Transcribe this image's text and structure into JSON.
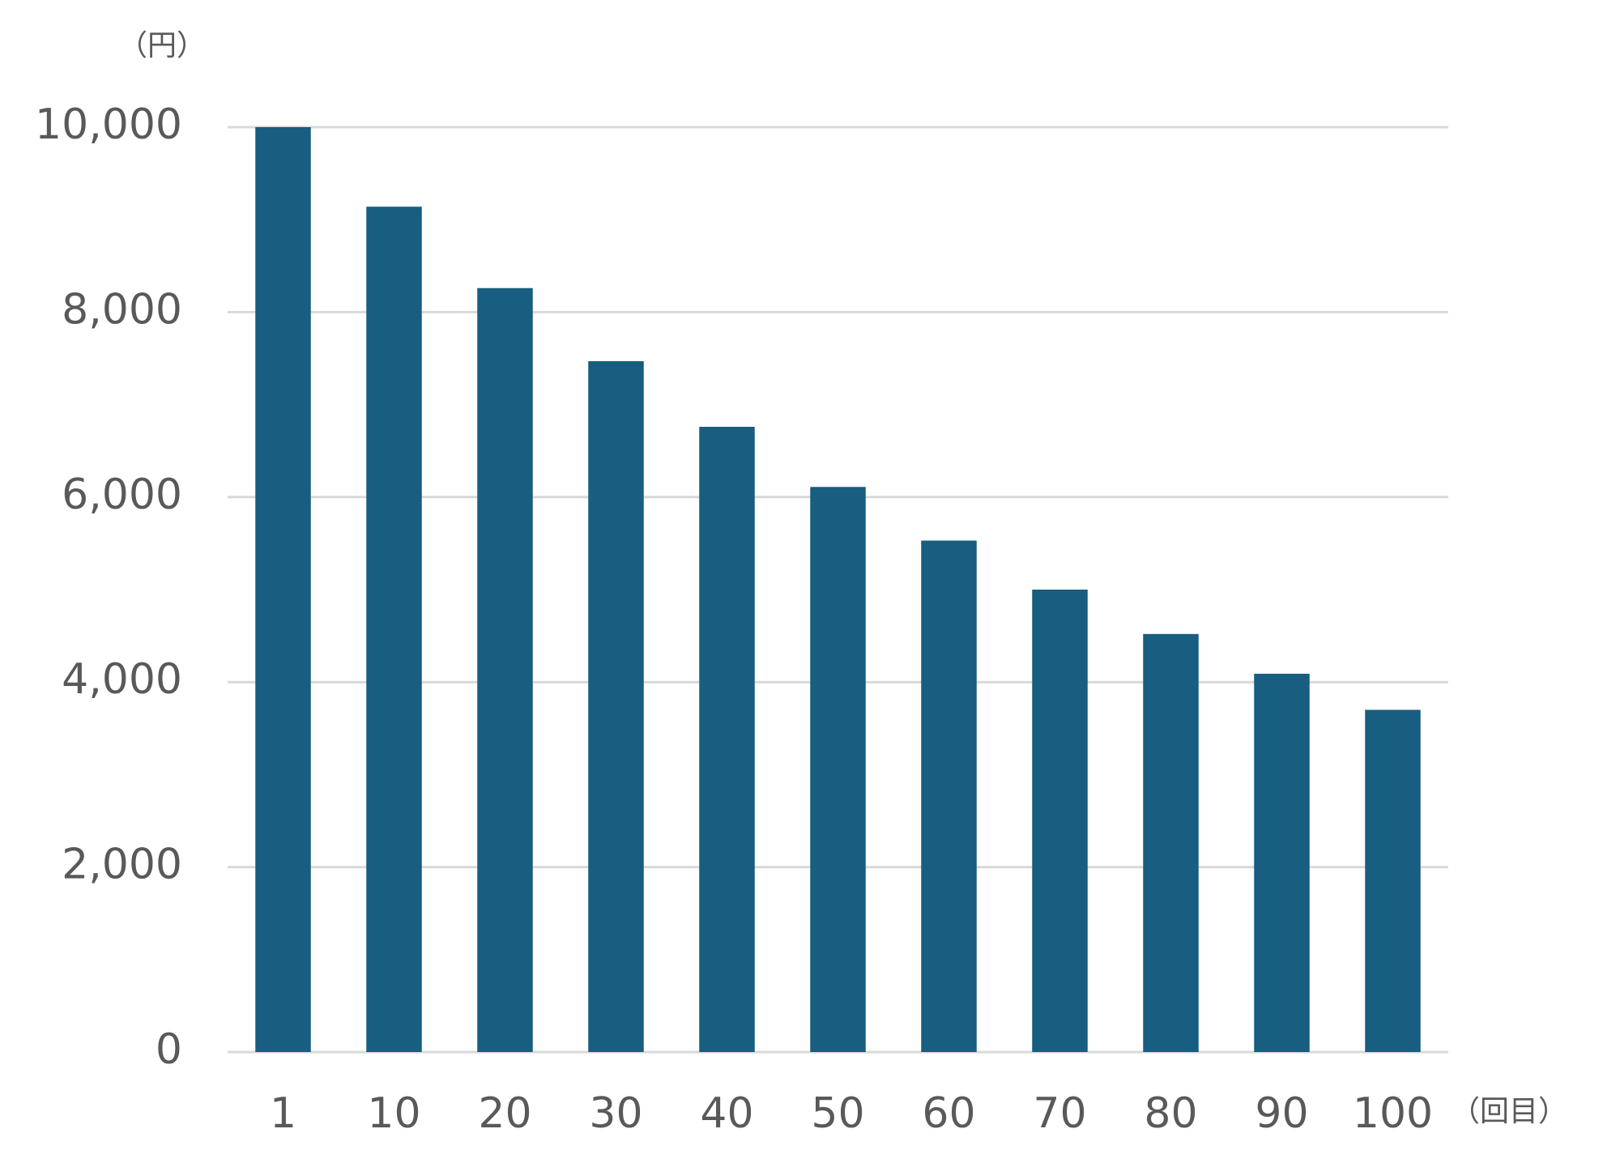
{
  "chart_data": {
    "type": "bar",
    "y_unit": "（円）",
    "x_unit": "（回目）",
    "categories": [
      "1",
      "10",
      "20",
      "30",
      "40",
      "50",
      "60",
      "70",
      "80",
      "90",
      "100"
    ],
    "values": [
      10000,
      9140,
      8260,
      7470,
      6760,
      6110,
      5530,
      5000,
      4520,
      4090,
      3700
    ],
    "color": "#175e80",
    "ylim": [
      0,
      10000
    ],
    "yticks": [
      0,
      {
        "value": 2000,
        "label": "2,000"
      },
      {
        "value": 4000,
        "label": "4,000"
      },
      {
        "value": 6000,
        "label": "6,000"
      },
      {
        "value": 8000,
        "label": "8,000"
      },
      {
        "value": 10000,
        "label": "10,000"
      }
    ],
    "grid": true
  }
}
